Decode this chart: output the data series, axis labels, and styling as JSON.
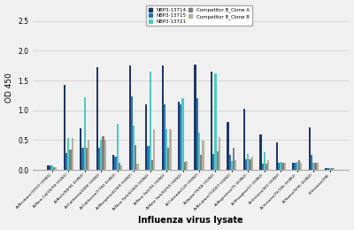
{
  "categories": [
    "A/Brisbane/10/07 (H3N1)",
    "A/New Cal/20/99 (H1N1)",
    "A/Aichi/68/36 (H3N2)",
    "A/California/2406 (H3N2)",
    "A/California/7/700 (H3N2)",
    "A/Memphis/41909 (H3N2)",
    "A/New York/41909 (H3N2)",
    "A/New York/55 (H3N2)",
    "A/New York/02/59 (H3N2)",
    "A/Colorado/120 (H3N2)",
    "A/Japan/76/68 (H1N2)",
    "A/Brisbane/7/2007 (H3N2)",
    "A/Argentina/75 (H3N2)",
    "A/Shanghai/12 (H3N2)",
    "A/Victoria/361 (H3N2)",
    "A/Victoria/75/195 (H3N2)",
    "A/Swine/9/95 (H3N2)",
    "B/Victoria/298"
  ],
  "series": {
    "NBP3-13714": [
      0.08,
      1.42,
      0.7,
      1.72,
      0.25,
      1.75,
      1.1,
      1.75,
      1.15,
      1.77,
      1.65,
      0.8,
      1.02,
      0.6,
      0.46,
      0.12,
      0.72,
      0.03
    ],
    "NBP3-13715": [
      0.08,
      0.28,
      0.38,
      0.38,
      0.22,
      1.24,
      0.4,
      1.1,
      1.1,
      1.2,
      0.27,
      0.25,
      0.18,
      0.1,
      0.12,
      0.12,
      0.25,
      0.03
    ],
    "NBP3-13721": [
      0.07,
      0.53,
      1.22,
      0.5,
      0.78,
      0.75,
      1.65,
      0.68,
      1.2,
      0.62,
      1.62,
      0.15,
      0.27,
      0.3,
      0.14,
      0.14,
      0.12,
      0.03
    ],
    "Competitor B_Clone A": [
      0.05,
      0.34,
      0.38,
      0.56,
      0.12,
      0.42,
      0.17,
      0.38,
      0.14,
      0.25,
      0.32,
      0.38,
      0.18,
      0.1,
      0.12,
      0.16,
      0.12,
      0.03
    ],
    "Competitor B_Clone B": [
      0.05,
      0.54,
      0.5,
      0.5,
      0.08,
      0.1,
      0.69,
      0.69,
      0.15,
      0.49,
      0.55,
      0.16,
      0.22,
      0.16,
      0.12,
      0.12,
      0.12,
      0.03
    ]
  },
  "colors": {
    "NBP3-13714": "#1f3864",
    "NBP3-13715": "#2e75b6",
    "NBP3-13721": "#4ec9c0",
    "Competitor B_Clone A": "#808080",
    "Competitor B_Clone B": "#b8b0a0"
  },
  "ylabel": "OD 450",
  "xlabel": "Influenza virus lysate",
  "ylim": [
    0,
    2.75
  ],
  "yticks": [
    0,
    0.5,
    1.0,
    1.5,
    2.0,
    2.5
  ],
  "background_color": "#f0f0f0",
  "grid_color": "#d0d0d0"
}
